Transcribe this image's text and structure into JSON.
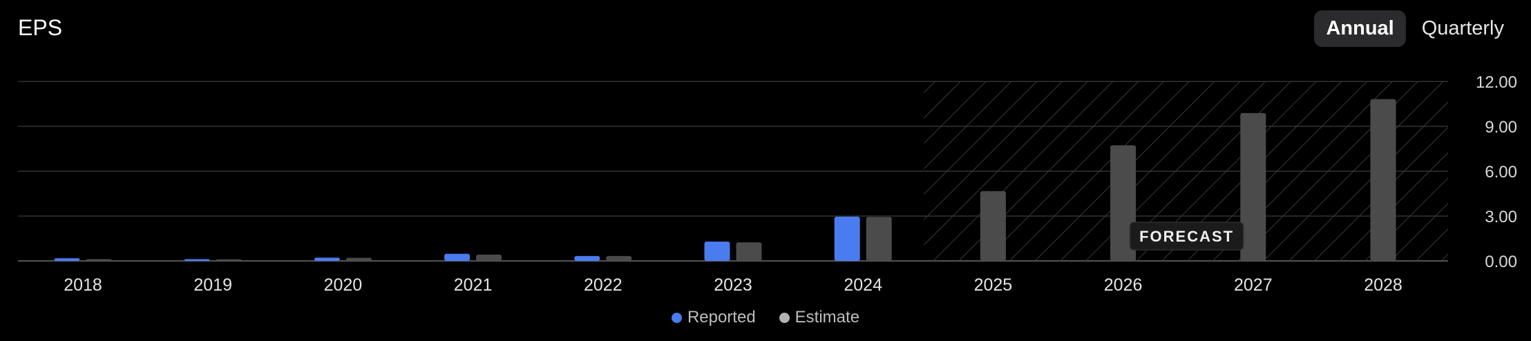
{
  "header": {
    "title": "EPS"
  },
  "period_toggle": {
    "options": [
      "Annual",
      "Quarterly"
    ],
    "selected": "Annual"
  },
  "colors": {
    "reported": "#4A7BEF",
    "estimate": "#4B4B4B",
    "grid": "#333333",
    "forecast_hatch": "#3A3A3A"
  },
  "forecast_label": "FORECAST",
  "legend": [
    {
      "label": "Reported",
      "color": "#4A7BEF"
    },
    {
      "label": "Estimate",
      "color": "#B3B3B3"
    }
  ],
  "chart_data": {
    "type": "bar",
    "categories": [
      "2018",
      "2019",
      "2020",
      "2021",
      "2022",
      "2023",
      "2024",
      "2025",
      "2026",
      "2027",
      "2028"
    ],
    "series": [
      {
        "name": "Reported",
        "values": [
          0.18,
          0.12,
          0.22,
          0.48,
          0.33,
          1.29,
          2.96,
          null,
          null,
          null,
          null
        ]
      },
      {
        "name": "Estimate",
        "values": [
          0.12,
          0.11,
          0.21,
          0.42,
          0.33,
          1.24,
          2.94,
          4.67,
          7.73,
          9.89,
          10.82
        ]
      }
    ],
    "forecast_start": "2025",
    "ylim": [
      0,
      12
    ],
    "yticks": [
      "0.00",
      "3.00",
      "6.00",
      "9.00",
      "12.00"
    ],
    "grid": true,
    "legend_position": "bottom-center",
    "y_axis_position": "right"
  }
}
